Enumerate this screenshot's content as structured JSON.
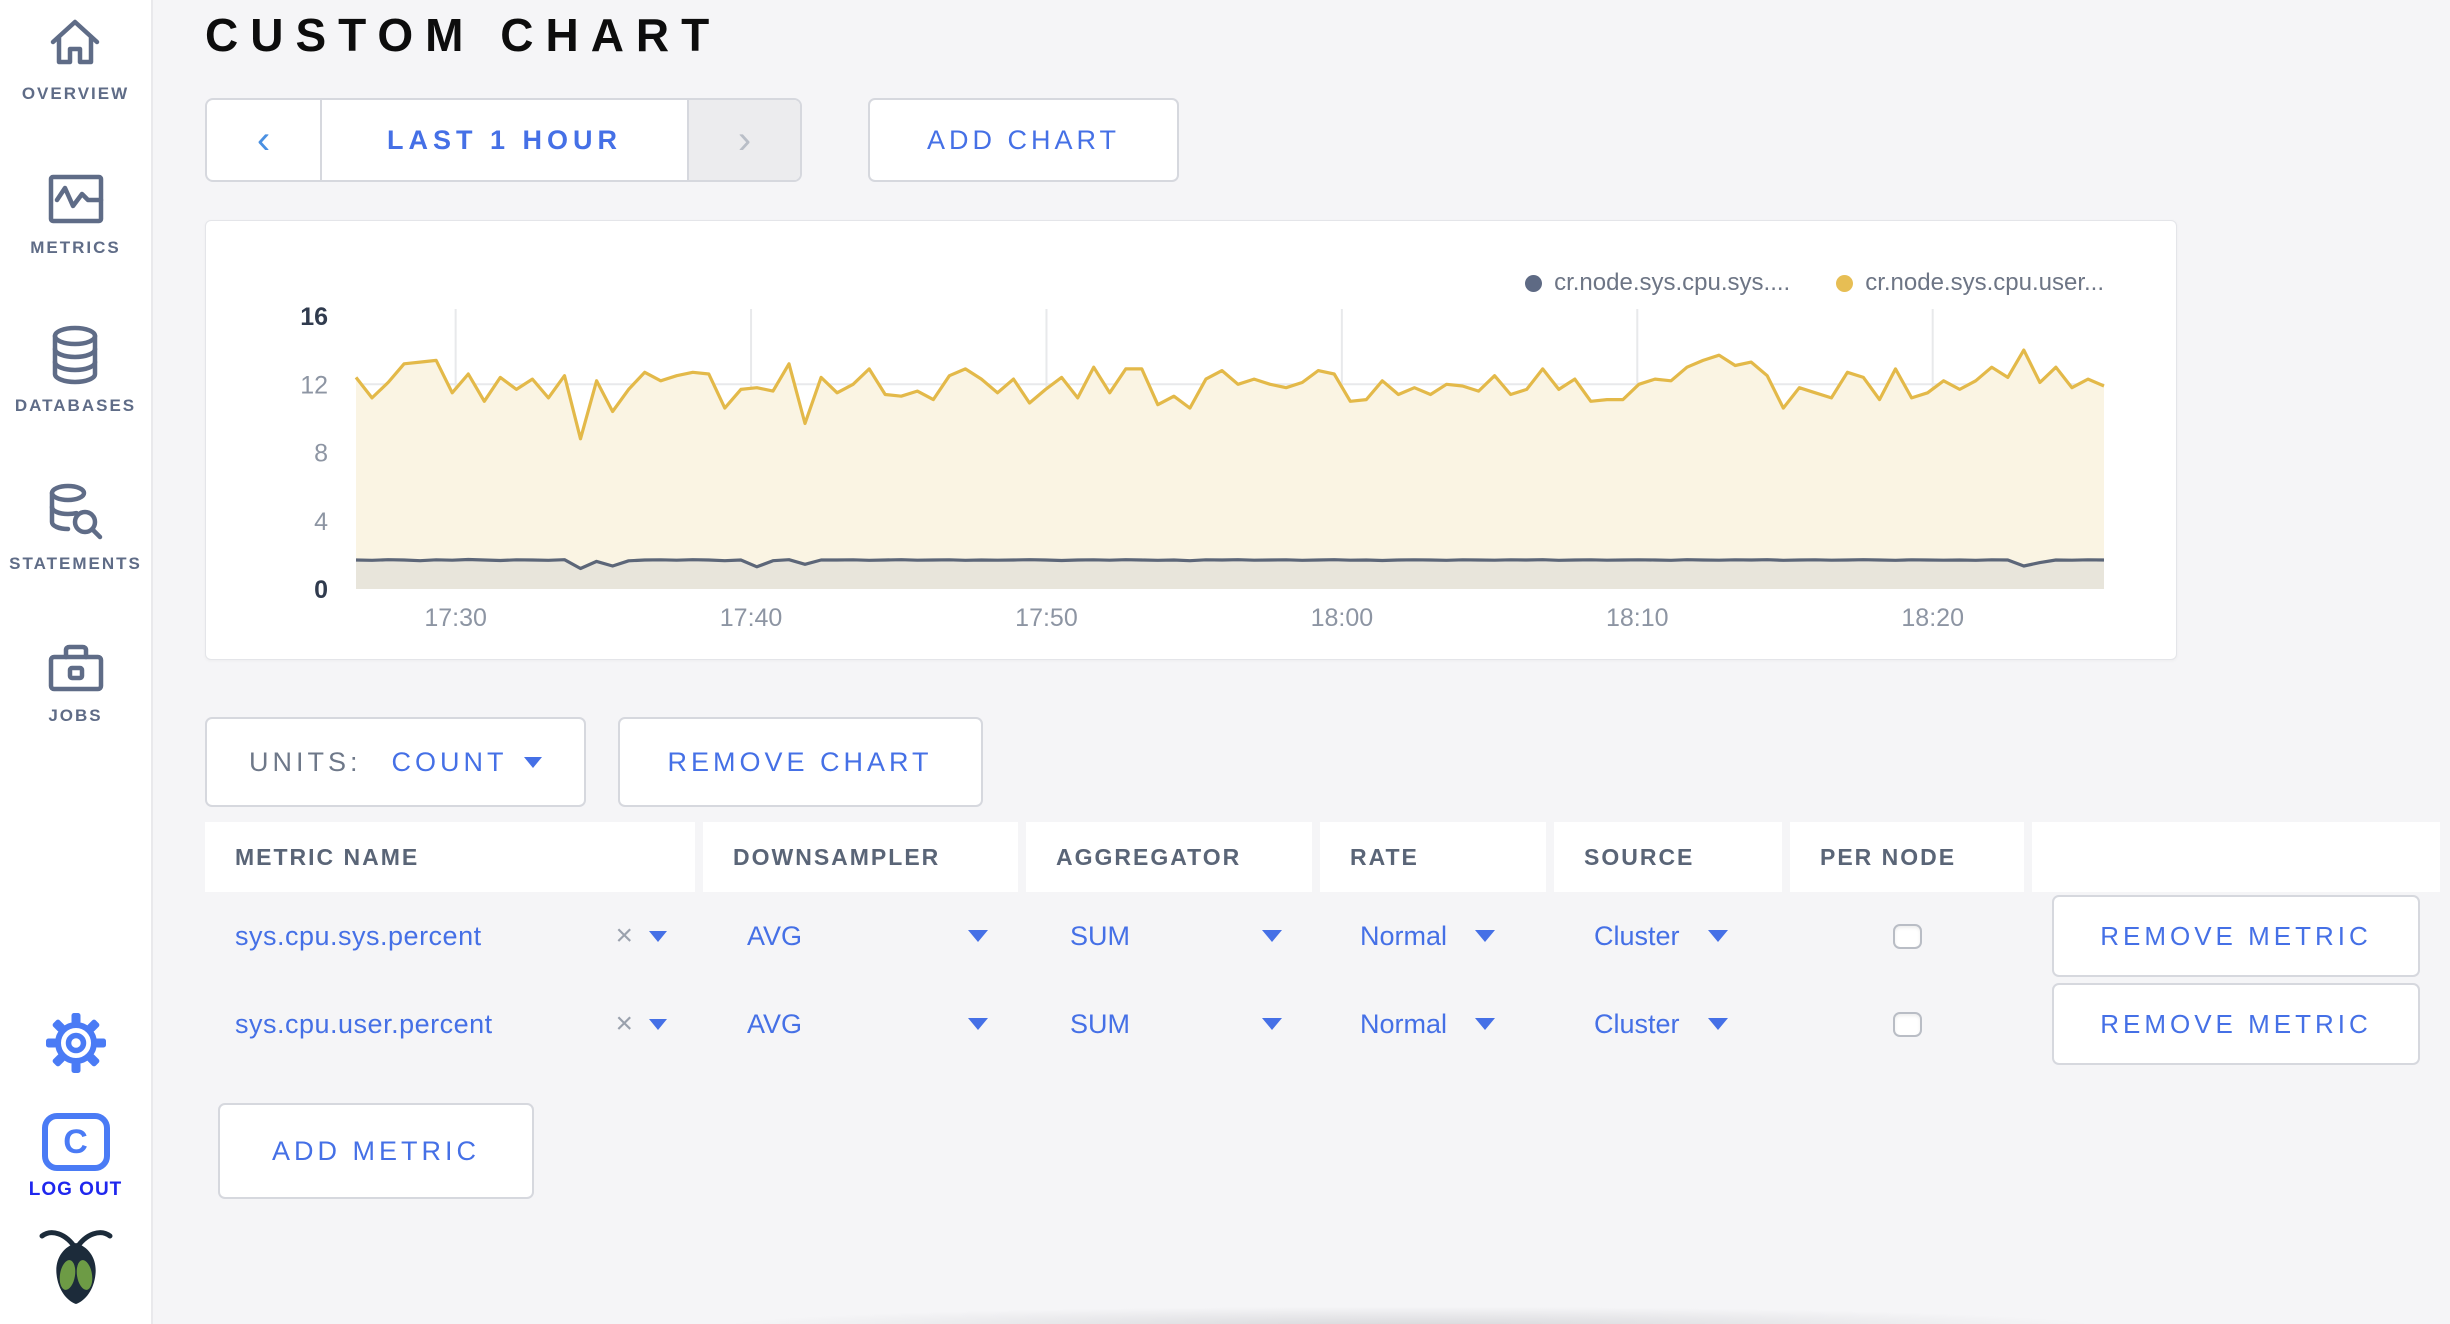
{
  "app": {
    "accent_color": "#4570e6",
    "page_bg": "#f5f5f7",
    "logout_color": "#1f27ee"
  },
  "sidebar": {
    "items": [
      {
        "label": "OVERVIEW",
        "icon": "home-icon"
      },
      {
        "label": "METRICS",
        "icon": "metrics-icon"
      },
      {
        "label": "DATABASES",
        "icon": "database-icon"
      },
      {
        "label": "STATEMENTS",
        "icon": "statements-icon"
      },
      {
        "label": "JOBS",
        "icon": "jobs-icon"
      }
    ],
    "logout_label": "LOG OUT",
    "logo_letter": "C"
  },
  "header": {
    "title": "CUSTOM CHART"
  },
  "toolbar": {
    "prev_glyph": "‹",
    "time_range": "LAST 1 HOUR",
    "next_glyph": "›",
    "add_chart": "ADD CHART"
  },
  "chart_card": {
    "legend": [
      {
        "label": "cr.node.sys.cpu.sys....",
        "color": "#5e6a84"
      },
      {
        "label": "cr.node.sys.cpu.user...",
        "color": "#e7be54"
      }
    ]
  },
  "chart_data": {
    "type": "area",
    "title": "",
    "xlabel": "",
    "ylabel": "",
    "ylim": [
      0,
      16
    ],
    "y_ticks": [
      16,
      12,
      8,
      4,
      0
    ],
    "x_ticks": [
      "17:30",
      "17:40",
      "17:50",
      "18:00",
      "18:10",
      "18:20"
    ],
    "grid": true,
    "legend_position": "top-right",
    "series": [
      {
        "name": "cr.node.sys.cpu.sys....",
        "color": "#5c6678",
        "fill": "#e8e5db",
        "values": [
          1.7,
          1.68,
          1.72,
          1.7,
          1.66,
          1.71,
          1.69,
          1.73,
          1.7,
          1.67,
          1.71,
          1.7,
          1.68,
          1.72,
          1.2,
          1.62,
          1.35,
          1.65,
          1.7,
          1.71,
          1.69,
          1.72,
          1.7,
          1.66,
          1.7,
          1.3,
          1.66,
          1.72,
          1.45,
          1.7,
          1.7,
          1.71,
          1.68,
          1.7,
          1.72,
          1.69,
          1.7,
          1.71,
          1.68,
          1.7,
          1.69,
          1.7,
          1.72,
          1.7,
          1.67,
          1.7,
          1.71,
          1.69,
          1.72,
          1.7,
          1.68,
          1.7,
          1.66,
          1.71,
          1.7,
          1.72,
          1.69,
          1.7,
          1.71,
          1.68,
          1.7,
          1.72,
          1.69,
          1.7,
          1.67,
          1.7,
          1.71,
          1.7,
          1.68,
          1.71,
          1.7,
          1.69,
          1.71,
          1.7,
          1.72,
          1.68,
          1.7,
          1.71,
          1.69,
          1.7,
          1.71,
          1.7,
          1.68,
          1.72,
          1.7,
          1.69,
          1.71,
          1.7,
          1.72,
          1.68,
          1.7,
          1.71,
          1.69,
          1.7,
          1.72,
          1.7,
          1.68,
          1.71,
          1.7,
          1.69,
          1.7,
          1.68,
          1.71,
          1.7,
          1.35,
          1.55,
          1.7,
          1.69,
          1.71,
          1.7
        ]
      },
      {
        "name": "cr.node.sys.cpu.user...",
        "color": "#e3b949",
        "fill": "#faf4e3",
        "values": [
          12.4,
          11.2,
          12.1,
          13.2,
          13.3,
          13.4,
          11.5,
          12.6,
          11.0,
          12.4,
          11.7,
          12.3,
          11.2,
          12.5,
          8.8,
          12.2,
          10.4,
          11.7,
          12.7,
          12.2,
          12.5,
          12.7,
          12.6,
          10.6,
          11.7,
          11.8,
          11.6,
          13.2,
          9.7,
          12.4,
          11.5,
          12.0,
          12.9,
          11.4,
          11.3,
          11.6,
          11.1,
          12.5,
          12.9,
          12.3,
          11.5,
          12.3,
          10.9,
          11.7,
          12.4,
          11.2,
          13.0,
          11.5,
          12.9,
          12.9,
          10.8,
          11.3,
          10.6,
          12.3,
          12.8,
          12.0,
          12.3,
          12.0,
          11.8,
          12.1,
          12.8,
          12.6,
          11.0,
          11.1,
          12.2,
          11.4,
          11.8,
          11.4,
          12.0,
          11.9,
          11.6,
          12.5,
          11.4,
          11.7,
          12.9,
          11.7,
          12.3,
          11.0,
          11.1,
          11.1,
          12.0,
          12.3,
          12.2,
          13.0,
          13.4,
          13.7,
          13.1,
          13.3,
          12.5,
          10.6,
          11.8,
          11.5,
          11.2,
          12.7,
          12.4,
          11.1,
          12.9,
          11.2,
          11.5,
          12.2,
          11.7,
          12.2,
          13.0,
          12.4,
          14.0,
          12.1,
          13.0,
          11.8,
          12.3,
          11.9
        ]
      }
    ]
  },
  "units_control": {
    "label": "UNITS:",
    "value": "COUNT"
  },
  "buttons": {
    "remove_chart": "REMOVE CHART",
    "add_metric": "ADD METRIC",
    "remove_metric": "REMOVE METRIC"
  },
  "table": {
    "clear_glyph": "×",
    "headers": [
      "METRIC NAME",
      "DOWNSAMPLER",
      "AGGREGATOR",
      "RATE",
      "SOURCE",
      "PER NODE"
    ],
    "rows": [
      {
        "metric": "sys.cpu.sys.percent",
        "downsampler": "AVG",
        "aggregator": "SUM",
        "rate": "Normal",
        "source": "Cluster",
        "per_node": false
      },
      {
        "metric": "sys.cpu.user.percent",
        "downsampler": "AVG",
        "aggregator": "SUM",
        "rate": "Normal",
        "source": "Cluster",
        "per_node": false
      }
    ]
  }
}
